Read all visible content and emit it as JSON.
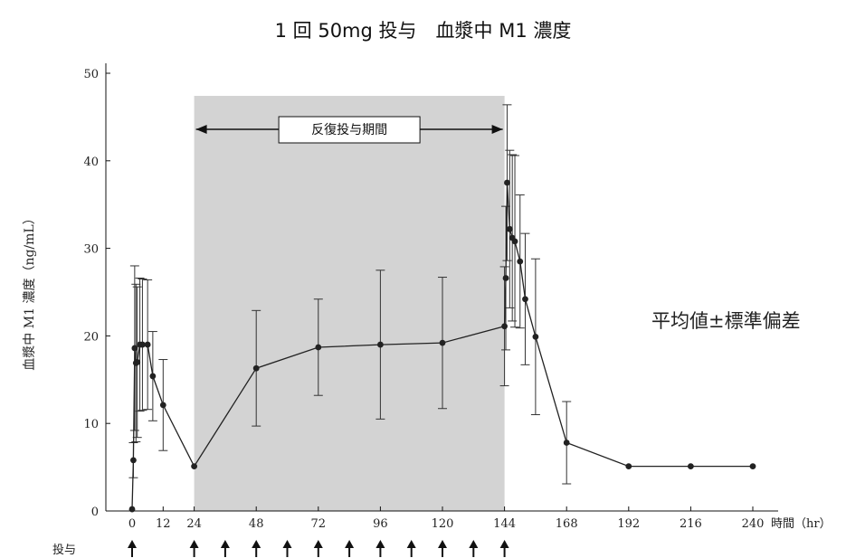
{
  "chart_data": {
    "type": "line",
    "title": "1 回 50mg 投与　血漿中 M1 濃度",
    "xlabel": "時間（hr）",
    "ylabel": "血漿中 M1 濃度（ng/mL）",
    "xlim": [
      0,
      240
    ],
    "ylim": [
      0,
      50
    ],
    "xticks": [
      0,
      12,
      24,
      48,
      72,
      96,
      120,
      144,
      168,
      192,
      216,
      240
    ],
    "yticks": [
      0,
      10,
      20,
      30,
      40,
      50
    ],
    "grid": false,
    "annotation": "平均値±標準偏差",
    "dosing_period": {
      "label": "反復投与期間",
      "start": 24,
      "end": 144
    },
    "dosing_label": "投与",
    "dosing_times": [
      0,
      24,
      36,
      48,
      60,
      72,
      84,
      96,
      108,
      120,
      132,
      144
    ],
    "series": [
      {
        "points": [
          {
            "x": 0,
            "y": 0.2,
            "sd": 0
          },
          {
            "x": 0.5,
            "y": 5.8,
            "sd": 2.0
          },
          {
            "x": 1,
            "y": 18.6,
            "sd": 9.4
          },
          {
            "x": 1.5,
            "y": 16.9,
            "sd": 9.0
          },
          {
            "x": 2,
            "y": 17.0,
            "sd": 8.6
          },
          {
            "x": 3,
            "y": 19.0,
            "sd": 7.6
          },
          {
            "x": 4,
            "y": 19.0,
            "sd": 7.5
          },
          {
            "x": 6,
            "y": 19.0,
            "sd": 7.4
          },
          {
            "x": 8,
            "y": 15.4,
            "sd": 5.1
          },
          {
            "x": 12,
            "y": 12.1,
            "sd": 5.2
          },
          {
            "x": 24,
            "y": 5.1,
            "sd": 0
          },
          {
            "x": 48,
            "y": 16.3,
            "sd": 6.6
          },
          {
            "x": 72,
            "y": 18.7,
            "sd": 5.5
          },
          {
            "x": 96,
            "y": 19.0,
            "sd": 8.5
          },
          {
            "x": 120,
            "y": 19.2,
            "sd": 7.5
          },
          {
            "x": 144,
            "y": 21.1,
            "sd": 6.8
          },
          {
            "x": 144.5,
            "y": 26.6,
            "sd": 8.2
          },
          {
            "x": 145,
            "y": 37.5,
            "sd": 8.9
          },
          {
            "x": 146,
            "y": 32.2,
            "sd": 9.0
          },
          {
            "x": 147,
            "y": 31.2,
            "sd": 9.5
          },
          {
            "x": 148,
            "y": 30.8,
            "sd": 9.8
          },
          {
            "x": 150,
            "y": 28.5,
            "sd": 7.6
          },
          {
            "x": 152,
            "y": 24.2,
            "sd": 7.5
          },
          {
            "x": 156,
            "y": 19.9,
            "sd": 8.9
          },
          {
            "x": 168,
            "y": 7.8,
            "sd": 4.7
          },
          {
            "x": 192,
            "y": 5.1,
            "sd": 0
          },
          {
            "x": 216,
            "y": 5.1,
            "sd": 0
          },
          {
            "x": 240,
            "y": 5.1,
            "sd": 0
          }
        ]
      }
    ]
  }
}
